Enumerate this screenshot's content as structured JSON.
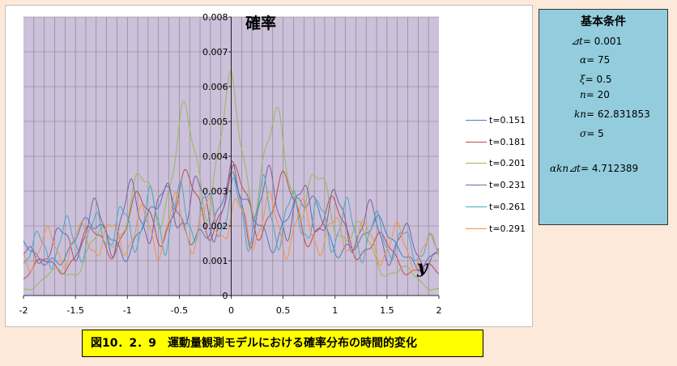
{
  "colors": {
    "page_background": "#fde9d9",
    "plot_background": "#ccc0da",
    "params_box": "#93cddd",
    "caption_box": "#ffff00"
  },
  "chart_data": {
    "type": "line",
    "title": "確率",
    "xlabel": "y",
    "ylabel": "",
    "xlim": [
      -2,
      2
    ],
    "ylim": [
      0,
      0.008
    ],
    "x_ticks": [
      "-2",
      "-1.5",
      "-1",
      "-0.5",
      "0",
      "0.5",
      "1",
      "1.5",
      "2"
    ],
    "y_ticks": [
      "0",
      "0.001",
      "0.002",
      "0.003",
      "0.004",
      "0.005",
      "0.006",
      "0.007",
      "0.008"
    ],
    "grid": true,
    "legend_position": "right",
    "series": [
      {
        "name": "t=0.151",
        "color": "#4a7ebb",
        "envelope": {
          "x": [
            -2,
            -1.5,
            -1,
            -0.5,
            0,
            0.5,
            1,
            1.5,
            2
          ],
          "y": [
            0.0017,
            0.0022,
            0.0028,
            0.0034,
            0.0036,
            0.0034,
            0.0028,
            0.0022,
            0.0017
          ]
        }
      },
      {
        "name": "t=0.181",
        "color": "#be4b48",
        "envelope": {
          "x": [
            -2,
            -1.5,
            -1,
            -0.5,
            0,
            0.5,
            1,
            1.5,
            2
          ],
          "y": [
            0.0008,
            0.0018,
            0.003,
            0.0038,
            0.004,
            0.0038,
            0.003,
            0.0018,
            0.0008
          ]
        }
      },
      {
        "name": "t=0.201",
        "color": "#98b954",
        "envelope": {
          "x": [
            -2,
            -1.5,
            -1,
            -0.5,
            0,
            0.5,
            1,
            1.5,
            2
          ],
          "y": [
            0.0003,
            0.0011,
            0.0032,
            0.0052,
            0.006,
            0.0052,
            0.0032,
            0.0011,
            0.0003
          ]
        }
      },
      {
        "name": "t=0.231",
        "color": "#7d60a0",
        "envelope": {
          "x": [
            -2,
            -1.5,
            -1,
            -0.5,
            0,
            0.5,
            1,
            1.5,
            2
          ],
          "y": [
            0.0015,
            0.0025,
            0.0034,
            0.0038,
            0.0039,
            0.0038,
            0.0034,
            0.0025,
            0.0015
          ]
        }
      },
      {
        "name": "t=0.261",
        "color": "#46aac5",
        "envelope": {
          "x": [
            -2,
            -1.5,
            -1,
            -0.5,
            0,
            0.5,
            1,
            1.5,
            2
          ],
          "y": [
            0.0018,
            0.0024,
            0.003,
            0.0034,
            0.0036,
            0.0034,
            0.003,
            0.0024,
            0.0018
          ]
        }
      },
      {
        "name": "t=0.291",
        "color": "#f69240",
        "envelope": {
          "x": [
            -2,
            -1.5,
            -1,
            -0.5,
            0,
            0.5,
            1,
            1.5,
            2
          ],
          "y": [
            0.0018,
            0.0022,
            0.0026,
            0.003,
            0.0032,
            0.003,
            0.0026,
            0.0022,
            0.0018
          ]
        }
      }
    ]
  },
  "params": {
    "title": "基本条件",
    "rows": [
      {
        "sym": "⊿t",
        "val": "= 0.001"
      },
      {
        "sym": "α",
        "val": "= 75"
      },
      {
        "sym": "ξ",
        "val": "= 0.5"
      },
      {
        "sym": "n",
        "val": "= 20"
      },
      {
        "sym": "kn",
        "val": "= 62.831853"
      },
      {
        "sym": "σ",
        "val": "= 5"
      },
      {
        "sym": "αkn⊿t",
        "val": "= 4.712389"
      }
    ]
  },
  "caption": "図10．2．9　運動量観測モデルにおける確率分布の時間的変化"
}
